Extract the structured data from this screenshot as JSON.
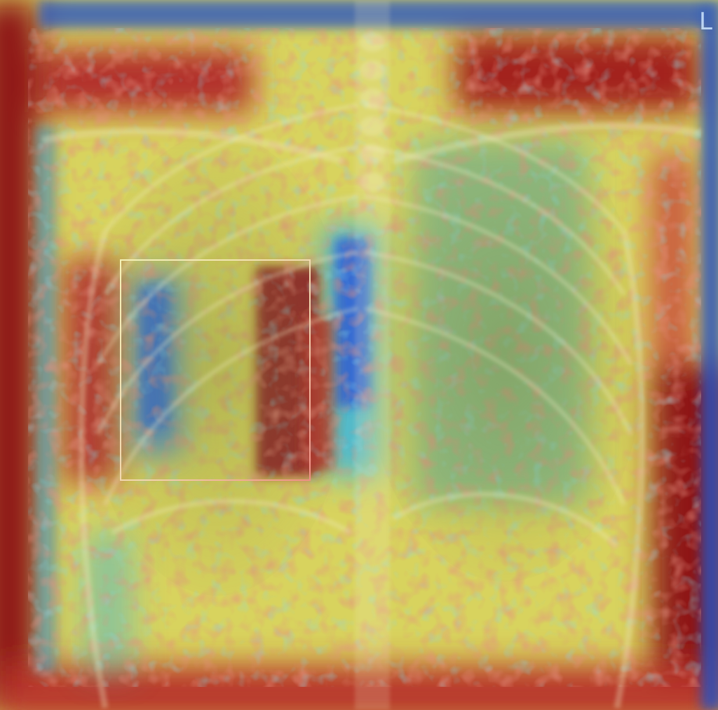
{
  "image": {
    "description_type": "chest-xray-with-saliency-heatmap",
    "side_marker": "L",
    "colors": {
      "heat_high": "#9e1a1a",
      "heat_mid_red": "#c8453a",
      "heat_mid": "#d9c24a",
      "heat_yellow": "#e2e06a",
      "heat_low": "#3db7d6",
      "heat_lowest": "#2f5fd0",
      "frame_edge": "#1a3fbf",
      "bbox_stroke": "#f2d5b0",
      "marker": "#cfe8ff"
    }
  }
}
